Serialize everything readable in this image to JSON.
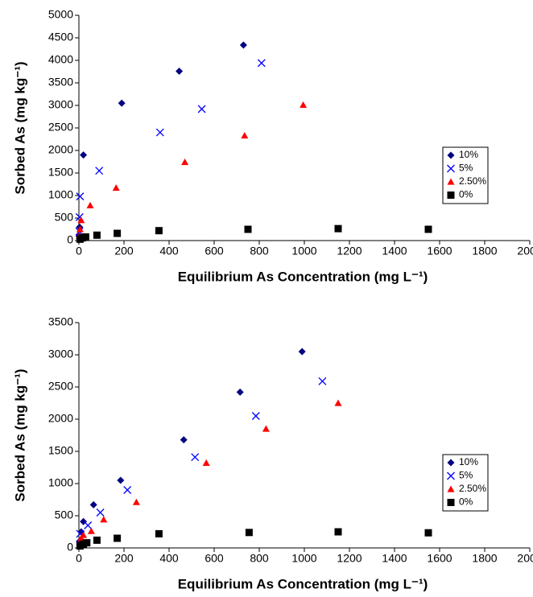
{
  "chart_data": [
    {
      "type": "scatter",
      "x_label": "Equilibrium As Concentration (mg L⁻¹)",
      "y_label": "Sorbed As (mg kg⁻¹)",
      "xlim": [
        0,
        2000
      ],
      "xticks": [
        0,
        200,
        400,
        600,
        800,
        1000,
        1200,
        1400,
        1600,
        1800,
        2000
      ],
      "ylim": [
        0,
        5000
      ],
      "yticks": [
        0,
        500,
        1000,
        1500,
        2000,
        2500,
        3000,
        3500,
        4000,
        4500,
        5000
      ],
      "grid": false,
      "legend": "right",
      "series": [
        {
          "name": "10%",
          "color": "#000080",
          "marker": "diamond",
          "x": [
            1,
            3,
            20,
            190,
            445,
            730
          ],
          "values": [
            100,
            300,
            1900,
            3050,
            3760,
            4340
          ]
        },
        {
          "name": "5%",
          "color": "#0000ff",
          "marker": "x",
          "x": [
            2,
            3,
            5,
            90,
            360,
            545,
            810
          ],
          "values": [
            200,
            520,
            980,
            1550,
            2400,
            2920,
            3940
          ]
        },
        {
          "name": "2.50%",
          "color": "#ff0000",
          "marker": "triangle",
          "x": [
            2,
            5,
            10,
            50,
            165,
            470,
            735,
            995
          ],
          "values": [
            100,
            250,
            450,
            780,
            1170,
            1740,
            2330,
            3010
          ]
        },
        {
          "name": "0%",
          "color": "#000000",
          "marker": "square",
          "x": [
            5,
            15,
            30,
            80,
            170,
            355,
            750,
            1150,
            1550
          ],
          "values": [
            30,
            60,
            80,
            120,
            160,
            220,
            250,
            265,
            250
          ]
        }
      ]
    },
    {
      "type": "scatter",
      "x_label": "Equilibrium As Concentration (mg L⁻¹)",
      "y_label": "Sorbed As (mg kg⁻¹)",
      "xlim": [
        0,
        2000
      ],
      "xticks": [
        0,
        200,
        400,
        600,
        800,
        1000,
        1200,
        1400,
        1600,
        1800,
        2000
      ],
      "ylim": [
        0,
        3500
      ],
      "yticks": [
        0,
        500,
        1000,
        1500,
        2000,
        2500,
        3000,
        3500
      ],
      "grid": false,
      "legend": "right",
      "series": [
        {
          "name": "10%",
          "color": "#000080",
          "marker": "diamond",
          "x": [
            2,
            10,
            20,
            65,
            185,
            465,
            715,
            990
          ],
          "values": [
            100,
            250,
            410,
            670,
            1050,
            1680,
            2420,
            3050
          ]
        },
        {
          "name": "5%",
          "color": "#0000ff",
          "marker": "x",
          "x": [
            5,
            40,
            95,
            215,
            515,
            785,
            1080
          ],
          "values": [
            220,
            350,
            550,
            900,
            1410,
            2050,
            2590
          ]
        },
        {
          "name": "2.50%",
          "color": "#ff0000",
          "marker": "triangle",
          "x": [
            10,
            20,
            55,
            110,
            255,
            565,
            830,
            1150
          ],
          "values": [
            150,
            200,
            260,
            440,
            710,
            1320,
            1850,
            2250
          ]
        },
        {
          "name": "0%",
          "color": "#000000",
          "marker": "square",
          "x": [
            5,
            20,
            35,
            80,
            170,
            355,
            755,
            1150,
            1550
          ],
          "values": [
            30,
            60,
            80,
            120,
            150,
            220,
            240,
            250,
            235
          ]
        }
      ]
    }
  ]
}
